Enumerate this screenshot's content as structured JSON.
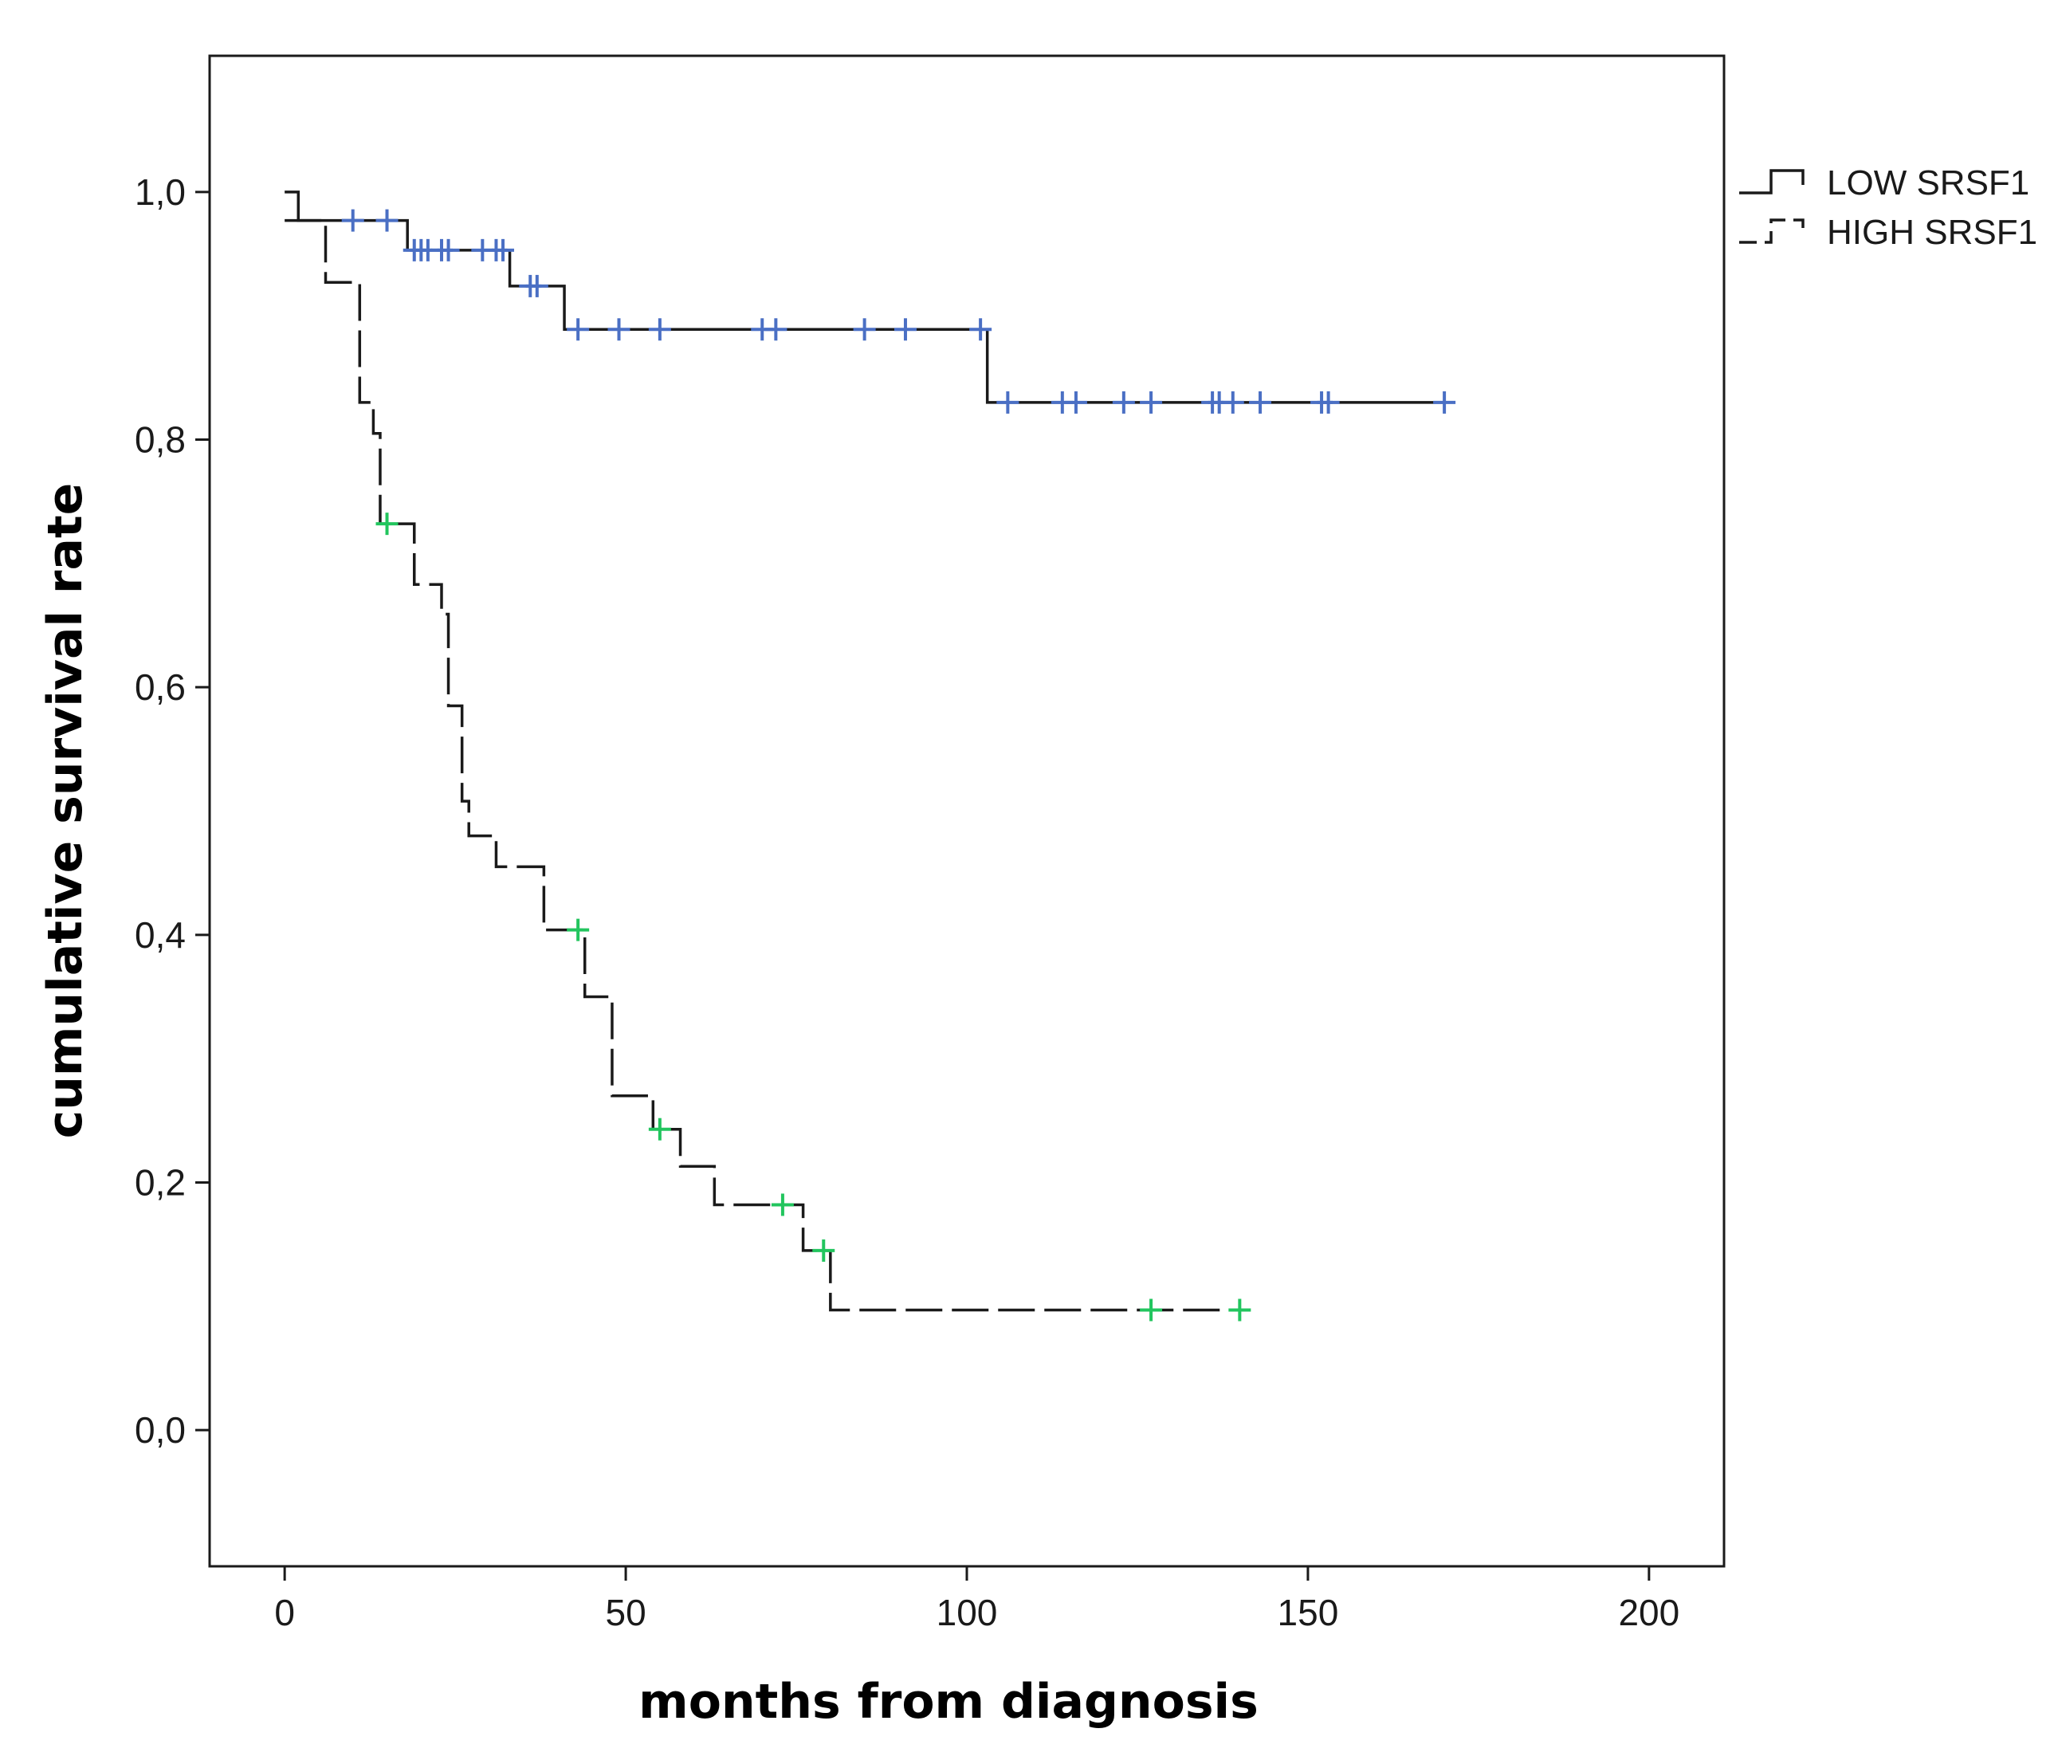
{
  "chart_data": {
    "type": "line",
    "subtype": "kaplan-meier",
    "title": "",
    "xlabel": "months from diagnosis",
    "ylabel": "cumulative survival rate",
    "xlim": [
      -11,
      211
    ],
    "ylim": [
      -0.11,
      1.11
    ],
    "x_ticks": [
      0,
      50,
      100,
      150,
      200
    ],
    "x_tick_labels": [
      "0",
      "50",
      "100",
      "150",
      "200"
    ],
    "y_ticks": [
      0.0,
      0.2,
      0.4,
      0.6,
      0.8,
      1.0
    ],
    "y_tick_labels": [
      "0,0",
      "0,2",
      "0,4",
      "0,6",
      "0,8",
      "1,0"
    ],
    "grid": false,
    "legend_position": "outside-right",
    "series": [
      {
        "name": "LOW SRSF1",
        "line_style": "solid",
        "line_color": "#1a1a1a",
        "censor_color": "#4a6fc4",
        "steps": [
          [
            0,
            1.0
          ],
          [
            2,
            0.977
          ],
          [
            18,
            0.953
          ],
          [
            33,
            0.924
          ],
          [
            41,
            0.889
          ],
          [
            103,
            0.83
          ]
        ],
        "end_x": 170,
        "censored": [
          [
            10,
            0.977
          ],
          [
            15,
            0.977
          ],
          [
            19,
            0.953
          ],
          [
            20,
            0.953
          ],
          [
            21,
            0.953
          ],
          [
            23,
            0.953
          ],
          [
            24,
            0.953
          ],
          [
            29,
            0.953
          ],
          [
            31,
            0.953
          ],
          [
            32,
            0.953
          ],
          [
            36,
            0.924
          ],
          [
            37,
            0.924
          ],
          [
            43,
            0.889
          ],
          [
            49,
            0.889
          ],
          [
            55,
            0.889
          ],
          [
            70,
            0.889
          ],
          [
            72,
            0.889
          ],
          [
            85,
            0.889
          ],
          [
            91,
            0.889
          ],
          [
            102,
            0.889
          ],
          [
            106,
            0.83
          ],
          [
            114,
            0.83
          ],
          [
            116,
            0.83
          ],
          [
            123,
            0.83
          ],
          [
            127,
            0.83
          ],
          [
            136,
            0.83
          ],
          [
            137,
            0.83
          ],
          [
            139,
            0.83
          ],
          [
            143,
            0.83
          ],
          [
            152,
            0.83
          ],
          [
            153,
            0.83
          ],
          [
            170,
            0.83
          ]
        ]
      },
      {
        "name": "HIGH SRSF1",
        "line_style": "dashed",
        "line_color": "#1a1a1a",
        "censor_color": "#22c55e",
        "steps": [
          [
            0,
            0.977
          ],
          [
            6,
            0.927
          ],
          [
            11,
            0.83
          ],
          [
            13,
            0.805
          ],
          [
            14,
            0.732
          ],
          [
            19,
            0.683
          ],
          [
            23,
            0.659
          ],
          [
            24,
            0.585
          ],
          [
            26,
            0.508
          ],
          [
            27,
            0.48
          ],
          [
            31,
            0.455
          ],
          [
            38,
            0.404
          ],
          [
            44,
            0.35
          ],
          [
            48,
            0.27
          ],
          [
            54,
            0.243
          ],
          [
            58,
            0.213
          ],
          [
            63,
            0.182
          ],
          [
            76,
            0.145
          ],
          [
            80,
            0.097
          ]
        ],
        "end_x": 140,
        "censored": [
          [
            15,
            0.732
          ],
          [
            43,
            0.404
          ],
          [
            55,
            0.243
          ],
          [
            73,
            0.182
          ],
          [
            79,
            0.145
          ],
          [
            127,
            0.097
          ],
          [
            140,
            0.097
          ]
        ]
      }
    ]
  }
}
